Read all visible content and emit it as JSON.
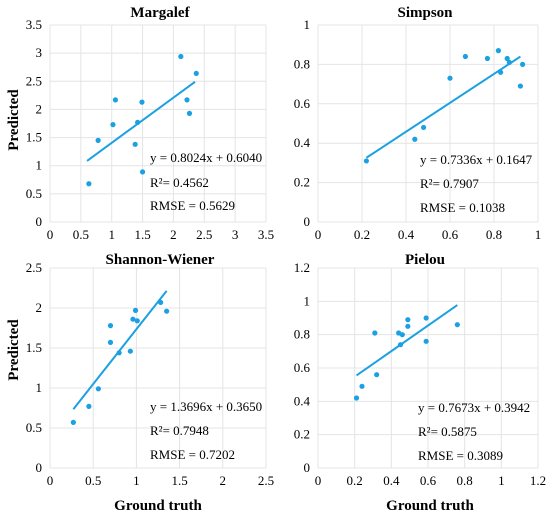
{
  "colors": {
    "accent": "#1ba1e2",
    "grid": "#e4e4e4",
    "text": "#000000"
  },
  "labels": {
    "y": "Predicted",
    "x": "Ground truth"
  },
  "chart_data": [
    {
      "type": "scatter",
      "title": "Margalef",
      "xlabel": "",
      "ylabel": "Predicted",
      "xlim": [
        0,
        3.5
      ],
      "ylim": [
        0,
        3.5
      ],
      "xticks": [
        0,
        0.5,
        1,
        1.5,
        2,
        2.5,
        3,
        3.5
      ],
      "xtick_labels": [
        "0",
        "0.5",
        "1",
        "1.5",
        "2",
        "2.5",
        "3",
        "3.5"
      ],
      "yticks": [
        0,
        0.5,
        1,
        1.5,
        2,
        2.5,
        3,
        3.5
      ],
      "ytick_labels": [
        "0",
        "0.5",
        "1",
        "1.5",
        "2",
        "2.5",
        "3",
        "3.5"
      ],
      "grid": true,
      "points": {
        "x": [
          0.63,
          0.78,
          1.02,
          1.06,
          1.38,
          1.42,
          1.49,
          1.5,
          2.12,
          2.22,
          2.26,
          2.37
        ],
        "y": [
          0.68,
          1.45,
          1.73,
          2.17,
          1.38,
          1.77,
          2.13,
          0.89,
          2.94,
          2.17,
          1.93,
          2.64
        ]
      },
      "fit": {
        "x": [
          0.6,
          2.35
        ],
        "slope": 0.8024,
        "intercept": 0.604
      },
      "stats": [
        "y = 0.8024x + 0.6040",
        "R²= 0.4562",
        "RMSE = 0.5629"
      ]
    },
    {
      "type": "scatter",
      "title": "Simpson",
      "xlabel": "",
      "ylabel": "",
      "xlim": [
        0,
        1
      ],
      "ylim": [
        0,
        1
      ],
      "xticks": [
        0,
        0.2,
        0.4,
        0.6,
        0.8,
        1
      ],
      "xtick_labels": [
        "0",
        "0.2",
        "0.4",
        "0.6",
        "0.8",
        "1"
      ],
      "yticks": [
        0,
        0.2,
        0.4,
        0.6,
        0.8,
        1
      ],
      "ytick_labels": [
        "0",
        "0.2",
        "0.4",
        "0.6",
        "0.8",
        "1"
      ],
      "grid": true,
      "points": {
        "x": [
          0.22,
          0.44,
          0.48,
          0.6,
          0.67,
          0.77,
          0.82,
          0.83,
          0.86,
          0.87,
          0.92,
          0.93
        ],
        "y": [
          0.31,
          0.42,
          0.48,
          0.73,
          0.84,
          0.83,
          0.87,
          0.76,
          0.83,
          0.81,
          0.69,
          0.8
        ]
      },
      "fit": {
        "x": [
          0.22,
          0.92
        ],
        "slope": 0.7336,
        "intercept": 0.1647
      },
      "stats": [
        "y = 0.7336x + 0.1647",
        "R²= 0.7907",
        "RMSE = 0.1038"
      ]
    },
    {
      "type": "scatter",
      "title": "Shannon-Wiener",
      "xlabel": "Ground truth",
      "ylabel": "Predicted",
      "xlim": [
        0,
        2.5
      ],
      "ylim": [
        0,
        2.5
      ],
      "xticks": [
        0,
        0.5,
        1,
        1.5,
        2,
        2.5
      ],
      "xtick_labels": [
        "0",
        "0.5",
        "1",
        "1.5",
        "2",
        "2.5"
      ],
      "yticks": [
        0,
        0.5,
        1,
        1.5,
        2,
        2.5
      ],
      "ytick_labels": [
        "0",
        "0.5",
        "1",
        "1.5",
        "2",
        "2.5"
      ],
      "grid": true,
      "points": {
        "x": [
          0.27,
          0.45,
          0.56,
          0.7,
          0.7,
          0.8,
          0.93,
          0.96,
          0.99,
          1.01,
          1.28,
          1.35
        ],
        "y": [
          0.57,
          0.77,
          0.99,
          1.57,
          1.78,
          1.44,
          1.46,
          1.86,
          1.97,
          1.84,
          2.07,
          1.96
        ]
      },
      "fit": {
        "x": [
          0.27,
          1.35
        ],
        "slope": 1.3696,
        "intercept": 0.365
      },
      "stats": [
        "y = 1.3696x + 0.3650",
        "R²= 0.7948",
        "RMSE = 0.7202"
      ]
    },
    {
      "type": "scatter",
      "title": "Pielou",
      "xlabel": "Ground truth",
      "ylabel": "",
      "xlim": [
        0,
        1.2
      ],
      "ylim": [
        0,
        1.2
      ],
      "xticks": [
        0,
        0.2,
        0.4,
        0.6,
        0.8,
        1,
        1.2
      ],
      "xtick_labels": [
        "0",
        "0.2",
        "0.4",
        "0.6",
        "0.8",
        "1",
        "1.2"
      ],
      "yticks": [
        0,
        0.2,
        0.4,
        0.6,
        0.8,
        1,
        1.2
      ],
      "ytick_labels": [
        "0",
        "0.2",
        "0.4",
        "0.6",
        "0.8",
        "1",
        "1.2"
      ],
      "grid": true,
      "points": {
        "x": [
          0.21,
          0.24,
          0.31,
          0.32,
          0.44,
          0.45,
          0.46,
          0.49,
          0.49,
          0.59,
          0.59,
          0.76
        ],
        "y": [
          0.42,
          0.49,
          0.81,
          0.56,
          0.81,
          0.74,
          0.8,
          0.89,
          0.85,
          0.9,
          0.76,
          0.86
        ]
      },
      "fit": {
        "x": [
          0.21,
          0.76
        ],
        "slope": 0.7673,
        "intercept": 0.3942
      },
      "stats": [
        "y = 0.7673x + 0.3942",
        "R²= 0.5875",
        "RMSE = 0.3089"
      ]
    }
  ]
}
